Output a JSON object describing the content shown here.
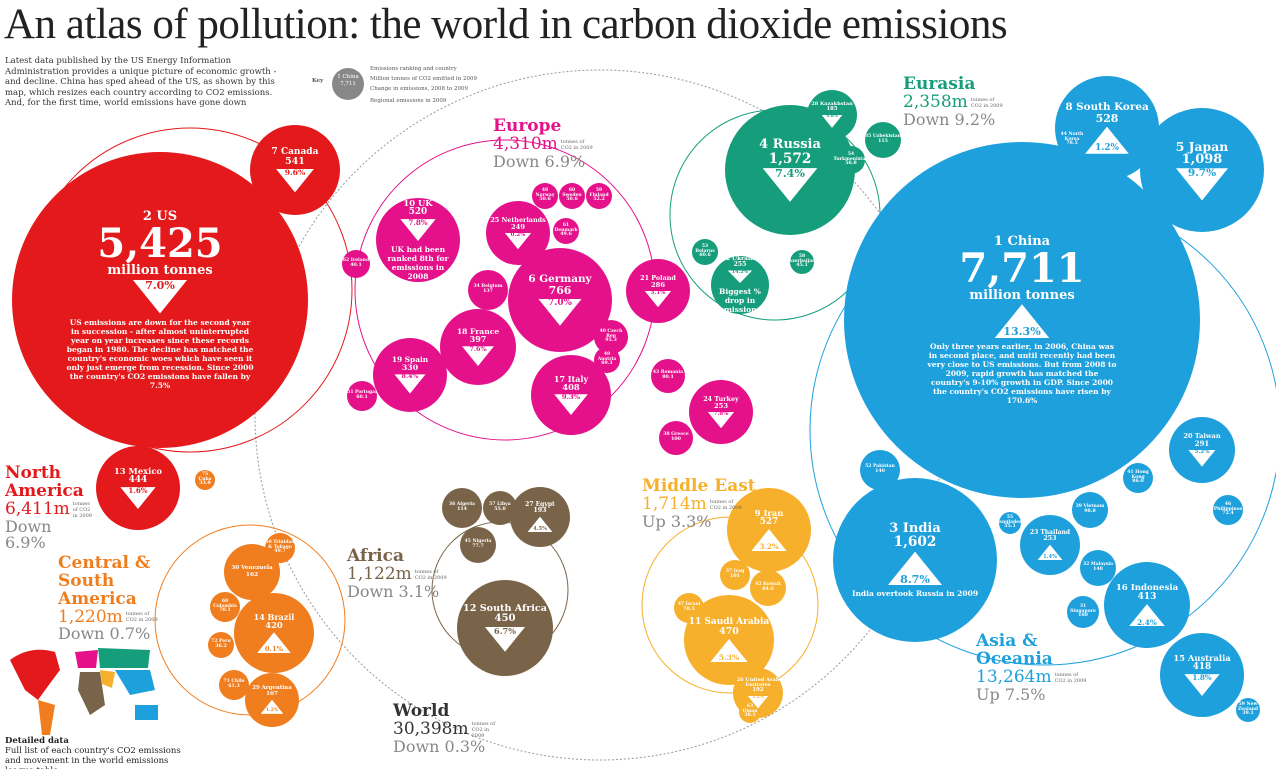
{
  "header": {
    "title": "An atlas of pollution: the world in carbon dioxide emissions",
    "intro": "Latest data published by the US Energy Information Administration provides a unique picture of economic growth - and decline. China has sped ahead of the US, as shown by this map, which resizes each country according to CO2 emissions. And, for the first time, world emissions have gone down"
  },
  "key": {
    "title": "Key",
    "sample": {
      "label": "1 China",
      "value": "7,711"
    },
    "items": [
      "Emissions ranking and country",
      "Million tonnes of CO2 emitted in 2009",
      "Change in emissions, 2008 to 2009",
      "Regional emissions in 2009"
    ]
  },
  "regions": [
    {
      "name": "North America",
      "color": "#e3191b",
      "total": "6,411m",
      "unit": "tonnes of CO2 in 2009",
      "change": "Down 6.9%"
    },
    {
      "name": "Central & South America",
      "color": "#f07d1e",
      "total": "1,220m",
      "unit": "tonnes of CO2 in 2009",
      "change": "Down 0.7%"
    },
    {
      "name": "Europe",
      "color": "#e5118a",
      "total": "4,310m",
      "unit": "tonnes of CO2 in 2009",
      "change": "Down 6.9%"
    },
    {
      "name": "Eurasia",
      "color": "#169e7c",
      "total": "2,358m",
      "unit": "tonnes of CO2 in 2009",
      "change": "Down 9.2%"
    },
    {
      "name": "Middle East",
      "color": "#f7b02b",
      "total": "1,714m",
      "unit": "tonnes of CO2 in 2009",
      "change": "Up 3.3%"
    },
    {
      "name": "Africa",
      "color": "#7a6449",
      "total": "1,122m",
      "unit": "tonnes of CO2 in 2009",
      "change": "Down 3.1%"
    },
    {
      "name": "Asia & Oceania",
      "color": "#1ea0dc",
      "total": "13,264m",
      "unit": "tonnes of CO2 in 2009",
      "change": "Up 7.5%"
    },
    {
      "name": "World",
      "color": "#333333",
      "total": "30,398m",
      "unit": "tonnes of CO2 in 2009",
      "change": "Down 0.3%"
    }
  ],
  "countries": [
    {
      "label": "2 US",
      "value": "5,425",
      "unit": "million tonnes",
      "change": "7.0%",
      "dir": "down",
      "region": 0,
      "note": "US emissions are down for the second year in succession - after almost uninterrupted year on year increases since these records began in 1980. The decline has matched the country's economic woes which have seen it only just emerge from recession. Since 2000 the country's CO2 emissions have fallen by 7.5%"
    },
    {
      "label": "7 Canada",
      "value": "541",
      "change": "9.6%",
      "dir": "down",
      "region": 0
    },
    {
      "label": "13 Mexico",
      "value": "444",
      "change": "1.6%",
      "dir": "down",
      "region": 0
    },
    {
      "label": "1 China",
      "value": "7,711",
      "unit": "million tonnes",
      "change": "13.3%",
      "dir": "up",
      "region": 6,
      "note": "Only three years earlier, in 2006, China was in second place, and until recently had been very close to US emissions. But from 2008 to 2009, rapid growth has matched the country's 9-10% growth in GDP. Since 2000 the country's CO2 emissions have risen by 170.6%"
    },
    {
      "label": "3 India",
      "value": "1,602",
      "change": "8.7%",
      "dir": "up",
      "region": 6,
      "note": "India overtook Russia in 2009"
    },
    {
      "label": "5 Japan",
      "value": "1,098",
      "change": "9.7%",
      "dir": "down",
      "region": 6
    },
    {
      "label": "8 South Korea",
      "value": "528",
      "change": "1.2%",
      "dir": "up",
      "region": 6
    },
    {
      "label": "16 Indonesia",
      "value": "413",
      "change": "2.4%",
      "dir": "up",
      "region": 6
    },
    {
      "label": "15 Australia",
      "value": "418",
      "change": "1.8%",
      "dir": "down",
      "region": 6
    },
    {
      "label": "20 Taiwan",
      "value": "291",
      "change": "5.2%",
      "dir": "down",
      "region": 6
    },
    {
      "label": "23 Thailand",
      "value": "253",
      "change": "1.4%",
      "dir": "up",
      "region": 6
    },
    {
      "label": "52 Pakistan",
      "value": "140",
      "region": 6
    },
    {
      "label": "39 Vietnam",
      "value": "98.8",
      "region": 6
    },
    {
      "label": "32 Malaysia",
      "value": "148",
      "region": 6
    },
    {
      "label": "31 Singapore",
      "value": "160",
      "region": 6
    },
    {
      "label": "46 Philippines",
      "value": "72.4",
      "region": 6
    },
    {
      "label": "41 Hong Kong",
      "value": "86.0",
      "region": 6
    },
    {
      "label": "44 North Korea",
      "value": "78.5",
      "region": 6
    },
    {
      "label": "55 Bangladesh",
      "value": "55.1",
      "region": 6
    },
    {
      "label": "59 New Zealand",
      "value": "39.1",
      "region": 6
    },
    {
      "label": "4 Russia",
      "value": "1,572",
      "change": "7.4%",
      "dir": "down",
      "region": 3
    },
    {
      "label": "22 Ukraine",
      "value": "255",
      "change": "14.2%",
      "dir": "down",
      "region": 3,
      "note": "Biggest % drop in emissions"
    },
    {
      "label": "28 Kazakhstan",
      "value": "185",
      "change": "4.8%",
      "dir": "down",
      "region": 3
    },
    {
      "label": "35 Uzbekistan",
      "value": "115",
      "region": 3
    },
    {
      "label": "54 Turkmenistan",
      "value": "56.8",
      "region": 3
    },
    {
      "label": "53 Belarus",
      "value": "60.6",
      "region": 3
    },
    {
      "label": "58 Azerbaijan",
      "value": "45.1",
      "region": 3
    },
    {
      "label": "6 Germany",
      "value": "766",
      "change": "7.0%",
      "dir": "down",
      "region": 2
    },
    {
      "label": "10 UK",
      "value": "520",
      "change": "7.8%",
      "dir": "down",
      "region": 2,
      "note": "UK had been ranked 8th for emissions in 2008"
    },
    {
      "label": "18 France",
      "value": "397",
      "change": "7.6%",
      "dir": "down",
      "region": 2
    },
    {
      "label": "17 Italy",
      "value": "408",
      "change": "9.3%",
      "dir": "down",
      "region": 2
    },
    {
      "label": "19 Spain",
      "value": "330",
      "change": "8.4%",
      "dir": "down",
      "region": 2
    },
    {
      "label": "21 Poland",
      "value": "286",
      "change": "5.1%",
      "dir": "down",
      "region": 2
    },
    {
      "label": "25 Netherlands",
      "value": "249",
      "change": "0.2%",
      "dir": "down",
      "region": 2
    },
    {
      "label": "24 Turkey",
      "value": "253",
      "change": "7.8%",
      "dir": "down",
      "region": 2
    },
    {
      "label": "34 Belgium",
      "value": "137",
      "region": 2
    },
    {
      "label": "40 Czech Rep",
      "value": "95.3",
      "region": 2
    },
    {
      "label": "43 Romania",
      "value": "80.1",
      "region": 2
    },
    {
      "label": "38 Greece",
      "value": "100",
      "region": 2
    },
    {
      "label": "49 Austria",
      "value": "69.1",
      "region": 2
    },
    {
      "label": "48 Norway",
      "value": "50.6",
      "region": 2
    },
    {
      "label": "60 Sweden",
      "value": "50.6",
      "region": 2
    },
    {
      "label": "59 Finland",
      "value": "52.2",
      "region": 2
    },
    {
      "label": "61 Denmark",
      "value": "49.6",
      "region": 2
    },
    {
      "label": "62 Ireland",
      "value": "40.1",
      "region": 2
    },
    {
      "label": "51 Portugal",
      "value": "60.1",
      "region": 2
    },
    {
      "label": "9 Iran",
      "value": "527",
      "change": "3.2%",
      "dir": "up",
      "region": 4
    },
    {
      "label": "11 Saudi Arabia",
      "value": "470",
      "change": "5.3%",
      "dir": "up",
      "region": 4
    },
    {
      "label": "26 United Arab Emirates",
      "value": "192",
      "change": "1.2%",
      "dir": "down",
      "region": 4
    },
    {
      "label": "42 Kuwait",
      "value": "84.0",
      "region": 4
    },
    {
      "label": "47 Israel",
      "value": "70.5",
      "region": 4
    },
    {
      "label": "37 Iraq",
      "value": "101",
      "region": 4
    },
    {
      "label": "63 Oman",
      "value": "38.1",
      "region": 4
    },
    {
      "label": "12 South Africa",
      "value": "450",
      "change": "6.7%",
      "dir": "down",
      "region": 5
    },
    {
      "label": "27 Egypt",
      "value": "193",
      "change": "4.5%",
      "dir": "up",
      "region": 5
    },
    {
      "label": "36 Algeria",
      "value": "114",
      "region": 5
    },
    {
      "label": "45 Nigeria",
      "value": "77.7",
      "region": 5
    },
    {
      "label": "57 Libya",
      "value": "55.0",
      "region": 5
    },
    {
      "label": "14 Brazil",
      "value": "420",
      "change": "0.1%",
      "dir": "up",
      "region": 1
    },
    {
      "label": "30 Venezuela",
      "value": "162",
      "region": 1
    },
    {
      "label": "29 Argentina",
      "value": "167",
      "change": "1.2%",
      "dir": "up",
      "region": 1
    },
    {
      "label": "68 Colombia",
      "value": "70.1",
      "region": 1
    },
    {
      "label": "71 Chile",
      "value": "61.3",
      "region": 1
    },
    {
      "label": "72 Peru",
      "value": "36.2",
      "region": 1
    },
    {
      "label": "50 Trinidad & Tobago",
      "value": "49.7",
      "region": 1
    },
    {
      "label": "75 Cuba",
      "value": "33.0",
      "region": 1
    }
  ],
  "footer": {
    "title": "Detailed data",
    "text": "Full list of each country's CO2 emissions and movement in the world emissions league table"
  }
}
